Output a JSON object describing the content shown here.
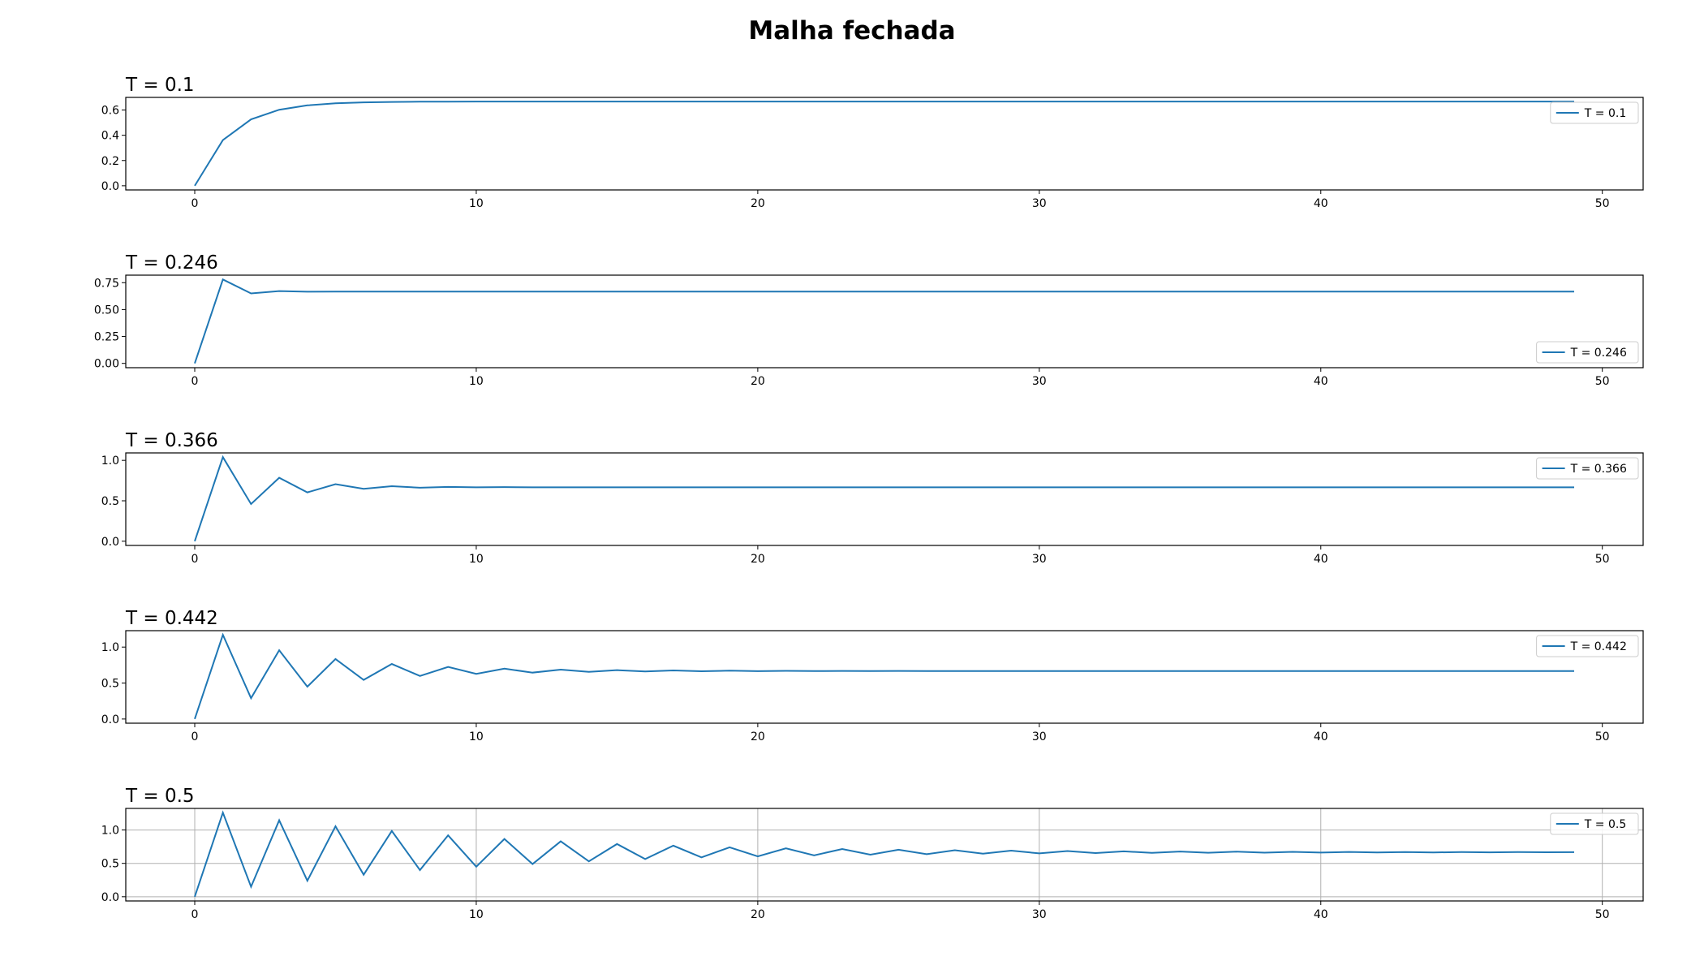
{
  "figure": {
    "title": "Malha fechada",
    "line_color": "#1f77b4"
  },
  "chart_data": [
    {
      "type": "line",
      "title": "T = 0.1",
      "series": [
        {
          "name": "T = 0.1",
          "x_start": 0,
          "x_step": 1,
          "values": [
            0,
            0.362,
            0.526,
            0.602,
            0.637,
            0.653,
            0.661,
            0.664,
            0.666,
            0.666,
            0.667,
            0.667,
            0.667,
            0.667,
            0.667,
            0.667,
            0.667,
            0.667,
            0.667,
            0.667,
            0.667,
            0.667,
            0.667,
            0.667,
            0.667,
            0.667,
            0.667,
            0.667,
            0.667,
            0.667,
            0.667,
            0.667,
            0.667,
            0.667,
            0.667,
            0.667,
            0.667,
            0.667,
            0.667,
            0.667,
            0.667,
            0.667,
            0.667,
            0.667,
            0.667,
            0.667,
            0.667,
            0.667,
            0.667,
            0.667
          ]
        }
      ],
      "xlim": [
        -2.45,
        51.45
      ],
      "ylim": [
        -0.033,
        0.7
      ],
      "xticks": [
        0,
        10,
        20,
        30,
        40,
        50
      ],
      "yticks": [
        0.0,
        0.2,
        0.4,
        0.6
      ],
      "ytick_labels": [
        "0.0",
        "0.2",
        "0.4",
        "0.6"
      ],
      "grid": false,
      "legend": "upper right"
    },
    {
      "type": "line",
      "title": "T = 0.246",
      "series": [
        {
          "name": "T = 0.246",
          "x_start": 0,
          "x_step": 1,
          "values": [
            0,
            0.78,
            0.65,
            0.672,
            0.666,
            0.667,
            0.667,
            0.667,
            0.667,
            0.667,
            0.667,
            0.667,
            0.667,
            0.667,
            0.667,
            0.667,
            0.667,
            0.667,
            0.667,
            0.667,
            0.667,
            0.667,
            0.667,
            0.667,
            0.667,
            0.667,
            0.667,
            0.667,
            0.667,
            0.667,
            0.667,
            0.667,
            0.667,
            0.667,
            0.667,
            0.667,
            0.667,
            0.667,
            0.667,
            0.667,
            0.667,
            0.667,
            0.667,
            0.667,
            0.667,
            0.667,
            0.667,
            0.667,
            0.667,
            0.667
          ]
        }
      ],
      "xlim": [
        -2.45,
        51.45
      ],
      "ylim": [
        -0.04,
        0.82
      ],
      "xticks": [
        0,
        10,
        20,
        30,
        40,
        50
      ],
      "yticks": [
        0.0,
        0.25,
        0.5,
        0.75
      ],
      "ytick_labels": [
        "0.00",
        "0.25",
        "0.50",
        "0.75"
      ],
      "grid": false,
      "legend": "lower right"
    },
    {
      "type": "line",
      "title": "T = 0.366",
      "series": [
        {
          "name": "T = 0.366",
          "x_start": 0,
          "x_step": 1,
          "values": [
            0,
            1.04,
            0.46,
            0.785,
            0.604,
            0.705,
            0.648,
            0.68,
            0.662,
            0.672,
            0.667,
            0.669,
            0.667,
            0.667,
            0.667,
            0.667,
            0.667,
            0.667,
            0.667,
            0.667,
            0.667,
            0.667,
            0.667,
            0.667,
            0.667,
            0.667,
            0.667,
            0.667,
            0.667,
            0.667,
            0.667,
            0.667,
            0.667,
            0.667,
            0.667,
            0.667,
            0.667,
            0.667,
            0.667,
            0.667,
            0.667,
            0.667,
            0.667,
            0.667,
            0.667,
            0.667,
            0.667,
            0.667,
            0.667,
            0.667
          ]
        }
      ],
      "xlim": [
        -2.45,
        51.45
      ],
      "ylim": [
        -0.052,
        1.092
      ],
      "xticks": [
        0,
        10,
        20,
        30,
        40,
        50
      ],
      "yticks": [
        0.0,
        0.5,
        1.0
      ],
      "ytick_labels": [
        "0.0",
        "0.5",
        "1.0"
      ],
      "grid": false,
      "legend": "upper right"
    },
    {
      "type": "line",
      "title": "T = 0.442",
      "series": [
        {
          "name": "T = 0.442",
          "x_start": 0,
          "x_step": 1,
          "values": [
            0,
            1.17,
            0.29,
            0.956,
            0.45,
            0.834,
            0.544,
            0.765,
            0.598,
            0.724,
            0.628,
            0.7,
            0.645,
            0.687,
            0.655,
            0.679,
            0.661,
            0.675,
            0.664,
            0.672,
            0.666,
            0.67,
            0.667,
            0.668,
            0.667,
            0.668,
            0.667,
            0.667,
            0.667,
            0.667,
            0.667,
            0.667,
            0.667,
            0.667,
            0.667,
            0.667,
            0.667,
            0.667,
            0.667,
            0.667,
            0.667,
            0.667,
            0.667,
            0.667,
            0.667,
            0.667,
            0.667,
            0.667,
            0.667,
            0.667
          ]
        }
      ],
      "xlim": [
        -2.45,
        51.45
      ],
      "ylim": [
        -0.058,
        1.228
      ],
      "xticks": [
        0,
        10,
        20,
        30,
        40,
        50
      ],
      "yticks": [
        0.0,
        0.5,
        1.0
      ],
      "ytick_labels": [
        "0.0",
        "0.5",
        "1.0"
      ],
      "grid": false,
      "legend": "upper right"
    },
    {
      "type": "line",
      "title": "T = 0.5",
      "series": [
        {
          "name": "T = 0.5",
          "x_start": 0,
          "x_step": 1,
          "values": [
            0,
            1.26,
            0.15,
            1.145,
            0.24,
            1.055,
            0.33,
            0.985,
            0.4,
            0.92,
            0.45,
            0.865,
            0.49,
            0.83,
            0.53,
            0.79,
            0.565,
            0.765,
            0.59,
            0.74,
            0.605,
            0.725,
            0.62,
            0.715,
            0.63,
            0.705,
            0.638,
            0.697,
            0.645,
            0.69,
            0.65,
            0.684,
            0.654,
            0.68,
            0.657,
            0.677,
            0.659,
            0.675,
            0.661,
            0.673,
            0.662,
            0.671,
            0.663,
            0.67,
            0.664,
            0.669,
            0.665,
            0.669,
            0.666,
            0.668
          ]
        }
      ],
      "xlim": [
        -2.45,
        51.45
      ],
      "ylim": [
        -0.063,
        1.323
      ],
      "xticks": [
        0,
        10,
        20,
        30,
        40,
        50
      ],
      "yticks": [
        0.0,
        0.5,
        1.0
      ],
      "ytick_labels": [
        "0.0",
        "0.5",
        "1.0"
      ],
      "grid": true,
      "legend": "upper right"
    }
  ]
}
